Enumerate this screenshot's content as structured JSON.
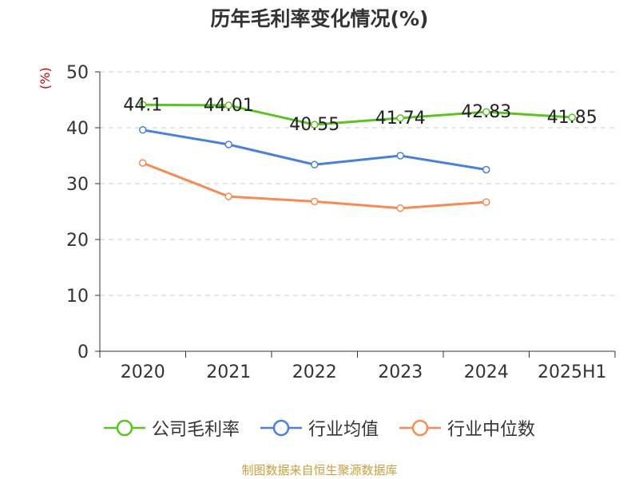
{
  "chart_data": {
    "type": "line",
    "title": "历年毛利率变化情况(%)",
    "ylabel": "(%)",
    "xlabel": "",
    "categories": [
      "2020",
      "2021",
      "2022",
      "2023",
      "2024",
      "2025H1"
    ],
    "ylim": [
      0,
      50
    ],
    "yticks": [
      0,
      10,
      20,
      30,
      40,
      50
    ],
    "grid": true,
    "legend_position": "bottom",
    "series": [
      {
        "name": "公司毛利率",
        "color": "#5cc323",
        "values": [
          44.1,
          44.01,
          40.55,
          41.74,
          42.83,
          41.85
        ],
        "show_labels": true
      },
      {
        "name": "行业均值",
        "color": "#4a7fdc",
        "values": [
          39.6,
          37.0,
          33.4,
          35.0,
          32.5,
          null
        ],
        "show_labels": false
      },
      {
        "name": "行业中位数",
        "color": "#f58b55",
        "values": [
          33.7,
          27.7,
          26.8,
          25.6,
          26.7,
          null
        ],
        "show_labels": false
      }
    ]
  },
  "source_note": "制图数据来自恒生聚源数据库"
}
